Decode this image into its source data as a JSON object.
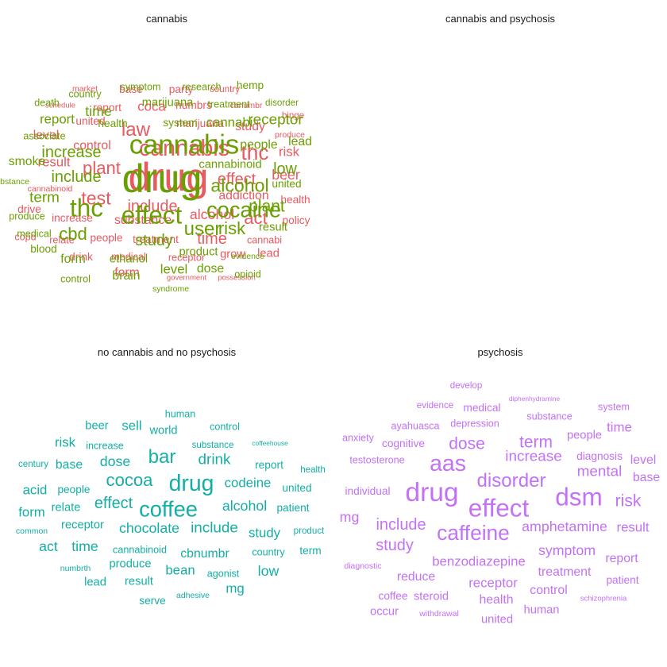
{
  "panels": [
    {
      "title": "cannabis",
      "color": "#E9595F",
      "words": [
        {
          "t": "market",
          "w": 1.0
        },
        {
          "t": "base",
          "w": 1.3
        },
        {
          "t": "party",
          "w": 1.3
        },
        {
          "t": "country",
          "w": 1.1
        },
        {
          "t": "schedule",
          "w": 0.9
        },
        {
          "t": "report",
          "w": 1.3
        },
        {
          "t": "coca",
          "w": 1.6
        },
        {
          "t": "numbrs",
          "w": 1.3
        },
        {
          "t": "cbnumbr",
          "w": 1.0
        },
        {
          "t": "united",
          "w": 1.3
        },
        {
          "t": "binge",
          "w": 1.1
        },
        {
          "t": "law",
          "w": 2.3
        },
        {
          "t": "marijuana",
          "w": 1.3
        },
        {
          "t": "study",
          "w": 1.5
        },
        {
          "t": "produce",
          "w": 1.0
        },
        {
          "t": "level",
          "w": 1.5
        },
        {
          "t": "cannabis",
          "w": 2.7
        },
        {
          "t": "thc",
          "w": 2.5
        },
        {
          "t": "control",
          "w": 1.5
        },
        {
          "t": "risk",
          "w": 1.6
        },
        {
          "t": "result",
          "w": 1.6
        },
        {
          "t": "plant",
          "w": 2.1
        },
        {
          "t": "drug",
          "w": 4.8
        },
        {
          "t": "effect",
          "w": 1.9
        },
        {
          "t": "beer",
          "w": 1.7
        },
        {
          "t": "cannabinoid",
          "w": 1.0
        },
        {
          "t": "addiction",
          "w": 1.5
        },
        {
          "t": "test",
          "w": 2.2
        },
        {
          "t": "include",
          "w": 1.9
        },
        {
          "t": "health",
          "w": 1.3
        },
        {
          "t": "drive",
          "w": 1.3
        },
        {
          "t": "increase",
          "w": 1.3
        },
        {
          "t": "alcohol",
          "w": 1.7
        },
        {
          "t": "act",
          "w": 2.1
        },
        {
          "t": "substance",
          "w": 1.5
        },
        {
          "t": "policy",
          "w": 1.3
        },
        {
          "t": "copd",
          "w": 1.2
        },
        {
          "t": "relate",
          "w": 1.2
        },
        {
          "t": "people",
          "w": 1.3
        },
        {
          "t": "treatment",
          "w": 1.3
        },
        {
          "t": "time",
          "w": 1.9
        },
        {
          "t": "cannabi",
          "w": 1.2
        },
        {
          "t": "drink",
          "w": 1.3
        },
        {
          "t": "medical",
          "w": 1.2
        },
        {
          "t": "receptor",
          "w": 1.2
        },
        {
          "t": "grow",
          "w": 1.4
        },
        {
          "t": "lead",
          "w": 1.4
        },
        {
          "t": "form",
          "w": 1.5
        },
        {
          "t": "government",
          "w": 0.9
        },
        {
          "t": "possession",
          "w": 0.9
        }
      ]
    },
    {
      "title": "cannabis and psychosis",
      "color": "#6A9F00",
      "words": [
        {
          "t": "symptom",
          "w": 1.2
        },
        {
          "t": "research",
          "w": 1.2
        },
        {
          "t": "hemp",
          "w": 1.3
        },
        {
          "t": "country",
          "w": 1.2
        },
        {
          "t": "marijuana",
          "w": 1.4
        },
        {
          "t": "treatment",
          "w": 1.2
        },
        {
          "t": "disorder",
          "w": 1.1
        },
        {
          "t": "death",
          "w": 1.2
        },
        {
          "t": "time",
          "w": 1.7
        },
        {
          "t": "health",
          "w": 1.3
        },
        {
          "t": "system",
          "w": 1.3
        },
        {
          "t": "cannabi",
          "w": 1.6
        },
        {
          "t": "receptor",
          "w": 1.8
        },
        {
          "t": "report",
          "w": 1.6
        },
        {
          "t": "associate",
          "w": 1.2
        },
        {
          "t": "cannabis",
          "w": 3.3
        },
        {
          "t": "people",
          "w": 1.5
        },
        {
          "t": "lead",
          "w": 1.5
        },
        {
          "t": "increase",
          "w": 1.9
        },
        {
          "t": "smoke",
          "w": 1.5
        },
        {
          "t": "cannabinoid",
          "w": 1.4
        },
        {
          "t": "low",
          "w": 1.9
        },
        {
          "t": "drug",
          "w": 4.8
        },
        {
          "t": "include",
          "w": 1.9
        },
        {
          "t": "substance",
          "w": 1.0
        },
        {
          "t": "united",
          "w": 1.3
        },
        {
          "t": "alcohol",
          "w": 2.2
        },
        {
          "t": "term",
          "w": 1.8
        },
        {
          "t": "thc",
          "w": 3.0
        },
        {
          "t": "effect",
          "w": 3.0
        },
        {
          "t": "cocaine",
          "w": 2.6
        },
        {
          "t": "plant",
          "w": 2.0
        },
        {
          "t": "produce",
          "w": 1.2
        },
        {
          "t": "user",
          "w": 2.3
        },
        {
          "t": "risk",
          "w": 2.1
        },
        {
          "t": "result",
          "w": 1.4
        },
        {
          "t": "medical",
          "w": 1.2
        },
        {
          "t": "cbd",
          "w": 2.1
        },
        {
          "t": "study",
          "w": 1.9
        },
        {
          "t": "blood",
          "w": 1.3
        },
        {
          "t": "product",
          "w": 1.4
        },
        {
          "t": "evidence",
          "w": 1.0
        },
        {
          "t": "form",
          "w": 1.5
        },
        {
          "t": "ethanol",
          "w": 1.4
        },
        {
          "t": "level",
          "w": 1.6
        },
        {
          "t": "dose",
          "w": 1.5
        },
        {
          "t": "opioid",
          "w": 1.2
        },
        {
          "t": "control",
          "w": 1.2
        },
        {
          "t": "brain",
          "w": 1.5
        },
        {
          "t": "syndrome",
          "w": 1.0
        }
      ]
    },
    {
      "title": "no cannabis and no psychosis",
      "color": "#13AFA6",
      "words": [
        {
          "t": "human",
          "w": 1.2
        },
        {
          "t": "beer",
          "w": 1.4
        },
        {
          "t": "sell",
          "w": 1.6
        },
        {
          "t": "world",
          "w": 1.4
        },
        {
          "t": "control",
          "w": 1.2
        },
        {
          "t": "risk",
          "w": 1.6
        },
        {
          "t": "increase",
          "w": 1.2
        },
        {
          "t": "bar",
          "w": 2.3
        },
        {
          "t": "substance",
          "w": 1.1
        },
        {
          "t": "coffeehouse",
          "w": 0.8
        },
        {
          "t": "century",
          "w": 1.1
        },
        {
          "t": "base",
          "w": 1.5
        },
        {
          "t": "dose",
          "w": 1.7
        },
        {
          "t": "drink",
          "w": 1.8
        },
        {
          "t": "report",
          "w": 1.3
        },
        {
          "t": "health",
          "w": 1.1
        },
        {
          "t": "cocoa",
          "w": 2.1
        },
        {
          "t": "drug",
          "w": 2.7
        },
        {
          "t": "acid",
          "w": 1.6
        },
        {
          "t": "people",
          "w": 1.3
        },
        {
          "t": "codeine",
          "w": 1.6
        },
        {
          "t": "united",
          "w": 1.3
        },
        {
          "t": "effect",
          "w": 1.9
        },
        {
          "t": "coffee",
          "w": 2.6
        },
        {
          "t": "form",
          "w": 1.6
        },
        {
          "t": "relate",
          "w": 1.4
        },
        {
          "t": "alcohol",
          "w": 1.7
        },
        {
          "t": "patient",
          "w": 1.3
        },
        {
          "t": "common",
          "w": 1.0
        },
        {
          "t": "receptor",
          "w": 1.4
        },
        {
          "t": "chocolate",
          "w": 1.7
        },
        {
          "t": "include",
          "w": 1.8
        },
        {
          "t": "study",
          "w": 1.6
        },
        {
          "t": "product",
          "w": 1.1
        },
        {
          "t": "act",
          "w": 1.7
        },
        {
          "t": "time",
          "w": 1.7
        },
        {
          "t": "cannabinoid",
          "w": 1.2
        },
        {
          "t": "cbnumbr",
          "w": 1.5
        },
        {
          "t": "country",
          "w": 1.2
        },
        {
          "t": "term",
          "w": 1.3
        },
        {
          "t": "numbrth",
          "w": 1.0
        },
        {
          "t": "produce",
          "w": 1.4
        },
        {
          "t": "bean",
          "w": 1.6
        },
        {
          "t": "agonist",
          "w": 1.2
        },
        {
          "t": "low",
          "w": 1.7
        },
        {
          "t": "lead",
          "w": 1.4
        },
        {
          "t": "result",
          "w": 1.4
        },
        {
          "t": "mg",
          "w": 1.6
        },
        {
          "t": "serve",
          "w": 1.3
        },
        {
          "t": "adhesive",
          "w": 1.0
        }
      ]
    },
    {
      "title": "psychosis",
      "color": "#C371F5",
      "words": [
        {
          "t": "develop",
          "w": 1.1
        },
        {
          "t": "diphenhydramine",
          "w": 0.8
        },
        {
          "t": "evidence",
          "w": 1.1
        },
        {
          "t": "medical",
          "w": 1.3
        },
        {
          "t": "system",
          "w": 1.2
        },
        {
          "t": "substance",
          "w": 1.2
        },
        {
          "t": "ayahuasca",
          "w": 1.2
        },
        {
          "t": "depression",
          "w": 1.2
        },
        {
          "t": "time",
          "w": 1.6
        },
        {
          "t": "anxiety",
          "w": 1.2
        },
        {
          "t": "cognitive",
          "w": 1.3
        },
        {
          "t": "dose",
          "w": 2.0
        },
        {
          "t": "term",
          "w": 2.0
        },
        {
          "t": "people",
          "w": 1.4
        },
        {
          "t": "diagnosis",
          "w": 1.3
        },
        {
          "t": "level",
          "w": 1.5
        },
        {
          "t": "testosterone",
          "w": 1.2
        },
        {
          "t": "aas",
          "w": 2.7
        },
        {
          "t": "increase",
          "w": 1.8
        },
        {
          "t": "mental",
          "w": 1.8
        },
        {
          "t": "base",
          "w": 1.5
        },
        {
          "t": "disorder",
          "w": 2.3
        },
        {
          "t": "individual",
          "w": 1.3
        },
        {
          "t": "drug",
          "w": 3.2
        },
        {
          "t": "dsm",
          "w": 3.0
        },
        {
          "t": "effect",
          "w": 3.0
        },
        {
          "t": "risk",
          "w": 2.0
        },
        {
          "t": "mg",
          "w": 1.7
        },
        {
          "t": "include",
          "w": 1.9
        },
        {
          "t": "caffeine",
          "w": 2.5
        },
        {
          "t": "amphetamine",
          "w": 1.7
        },
        {
          "t": "result",
          "w": 1.6
        },
        {
          "t": "study",
          "w": 1.9
        },
        {
          "t": "symptom",
          "w": 1.7
        },
        {
          "t": "diagnostic",
          "w": 1.0
        },
        {
          "t": "benzodiazepine",
          "w": 1.6
        },
        {
          "t": "report",
          "w": 1.5
        },
        {
          "t": "reduce",
          "w": 1.5
        },
        {
          "t": "treatment",
          "w": 1.5
        },
        {
          "t": "receptor",
          "w": 1.6
        },
        {
          "t": "patient",
          "w": 1.3
        },
        {
          "t": "control",
          "w": 1.5
        },
        {
          "t": "coffee",
          "w": 1.3
        },
        {
          "t": "steroid",
          "w": 1.4
        },
        {
          "t": "health",
          "w": 1.5
        },
        {
          "t": "schizophrenia",
          "w": 0.9
        },
        {
          "t": "occur",
          "w": 1.4
        },
        {
          "t": "withdrawal",
          "w": 1.0
        },
        {
          "t": "human",
          "w": 1.4
        },
        {
          "t": "united",
          "w": 1.4
        }
      ]
    }
  ]
}
